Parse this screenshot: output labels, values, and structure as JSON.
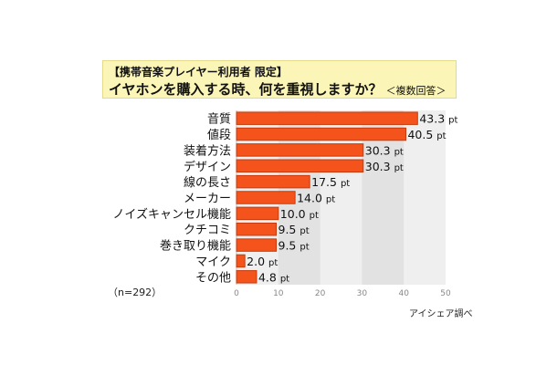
{
  "title_line1": "【携帯音楽プレイヤー利用者 限定】",
  "title_line2": "イヤホンを購入する時、何を重視しますか？",
  "title_note": "＜複数回答＞",
  "sample_label": "（n=292）",
  "source_label": "アイシェア調べ",
  "unit": "pt",
  "colors": {
    "bar": "#f4541b",
    "bar_edge": "#c73a0e",
    "plot_bg": "#efefef",
    "plot_band": "#e2e2e2"
  },
  "chart_data": {
    "type": "bar",
    "orientation": "horizontal",
    "categories": [
      "音質",
      "値段",
      "装着方法",
      "デザイン",
      "線の長さ",
      "メーカー",
      "ノイズキャンセル機能",
      "クチコミ",
      "巻き取り機能",
      "マイク",
      "その他"
    ],
    "values": [
      43.3,
      40.5,
      30.3,
      30.3,
      17.5,
      14.0,
      10.0,
      9.5,
      9.5,
      2.0,
      4.8
    ],
    "value_labels": [
      "43.3",
      "40.5",
      "30.3",
      "30.3",
      "17.5",
      "14.0",
      "10.0",
      "9.5",
      "9.5",
      "2.0",
      "4.8"
    ],
    "xlim": [
      0,
      50
    ],
    "xticks": [
      0,
      10,
      20,
      30,
      40,
      50
    ],
    "grid": false,
    "legend": "none"
  }
}
